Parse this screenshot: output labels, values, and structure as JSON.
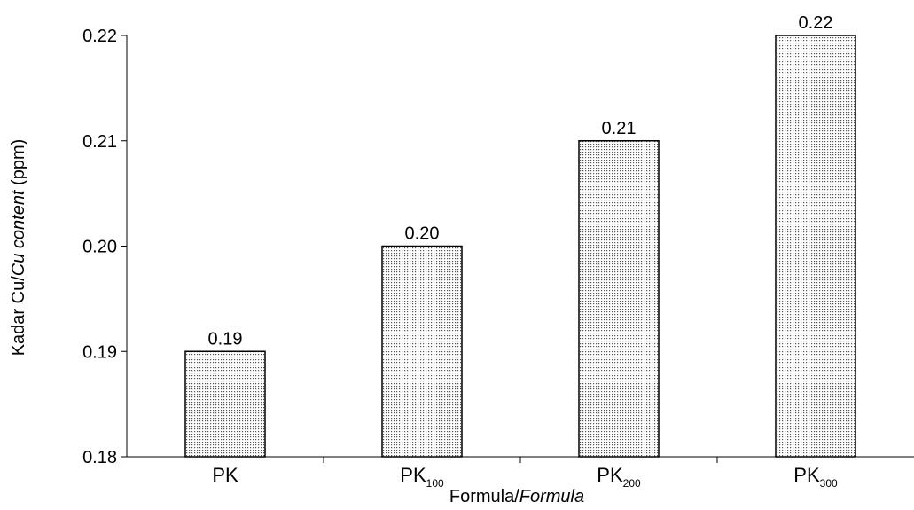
{
  "chart_data": {
    "type": "bar",
    "title": "",
    "categories": [
      {
        "base": "PK",
        "sub": ""
      },
      {
        "base": "PK",
        "sub": "100"
      },
      {
        "base": "PK",
        "sub": "200"
      },
      {
        "base": "PK",
        "sub": "300"
      }
    ],
    "values": [
      0.19,
      0.2,
      0.21,
      0.22
    ],
    "value_labels": [
      "0.19",
      "0.20",
      "0.21",
      "0.22"
    ],
    "ylim": [
      0.18,
      0.22
    ],
    "yticks": [
      0.18,
      0.19,
      0.2,
      0.21,
      0.22
    ],
    "ytick_labels": [
      "0.18",
      "0.19",
      "0.20",
      "0.21",
      "0.22"
    ],
    "xlabel": {
      "normal": "Formula/",
      "italic": "Formula"
    },
    "ylabel": {
      "normal_before": "Kadar Cu/",
      "italic": "Cu content",
      "normal_after": " (ppm)"
    },
    "grid": false,
    "bar_fill": "dotted-pattern",
    "colors": {
      "bar_edge": "#000000",
      "dots": "#555555",
      "background": "#ffffff"
    }
  }
}
